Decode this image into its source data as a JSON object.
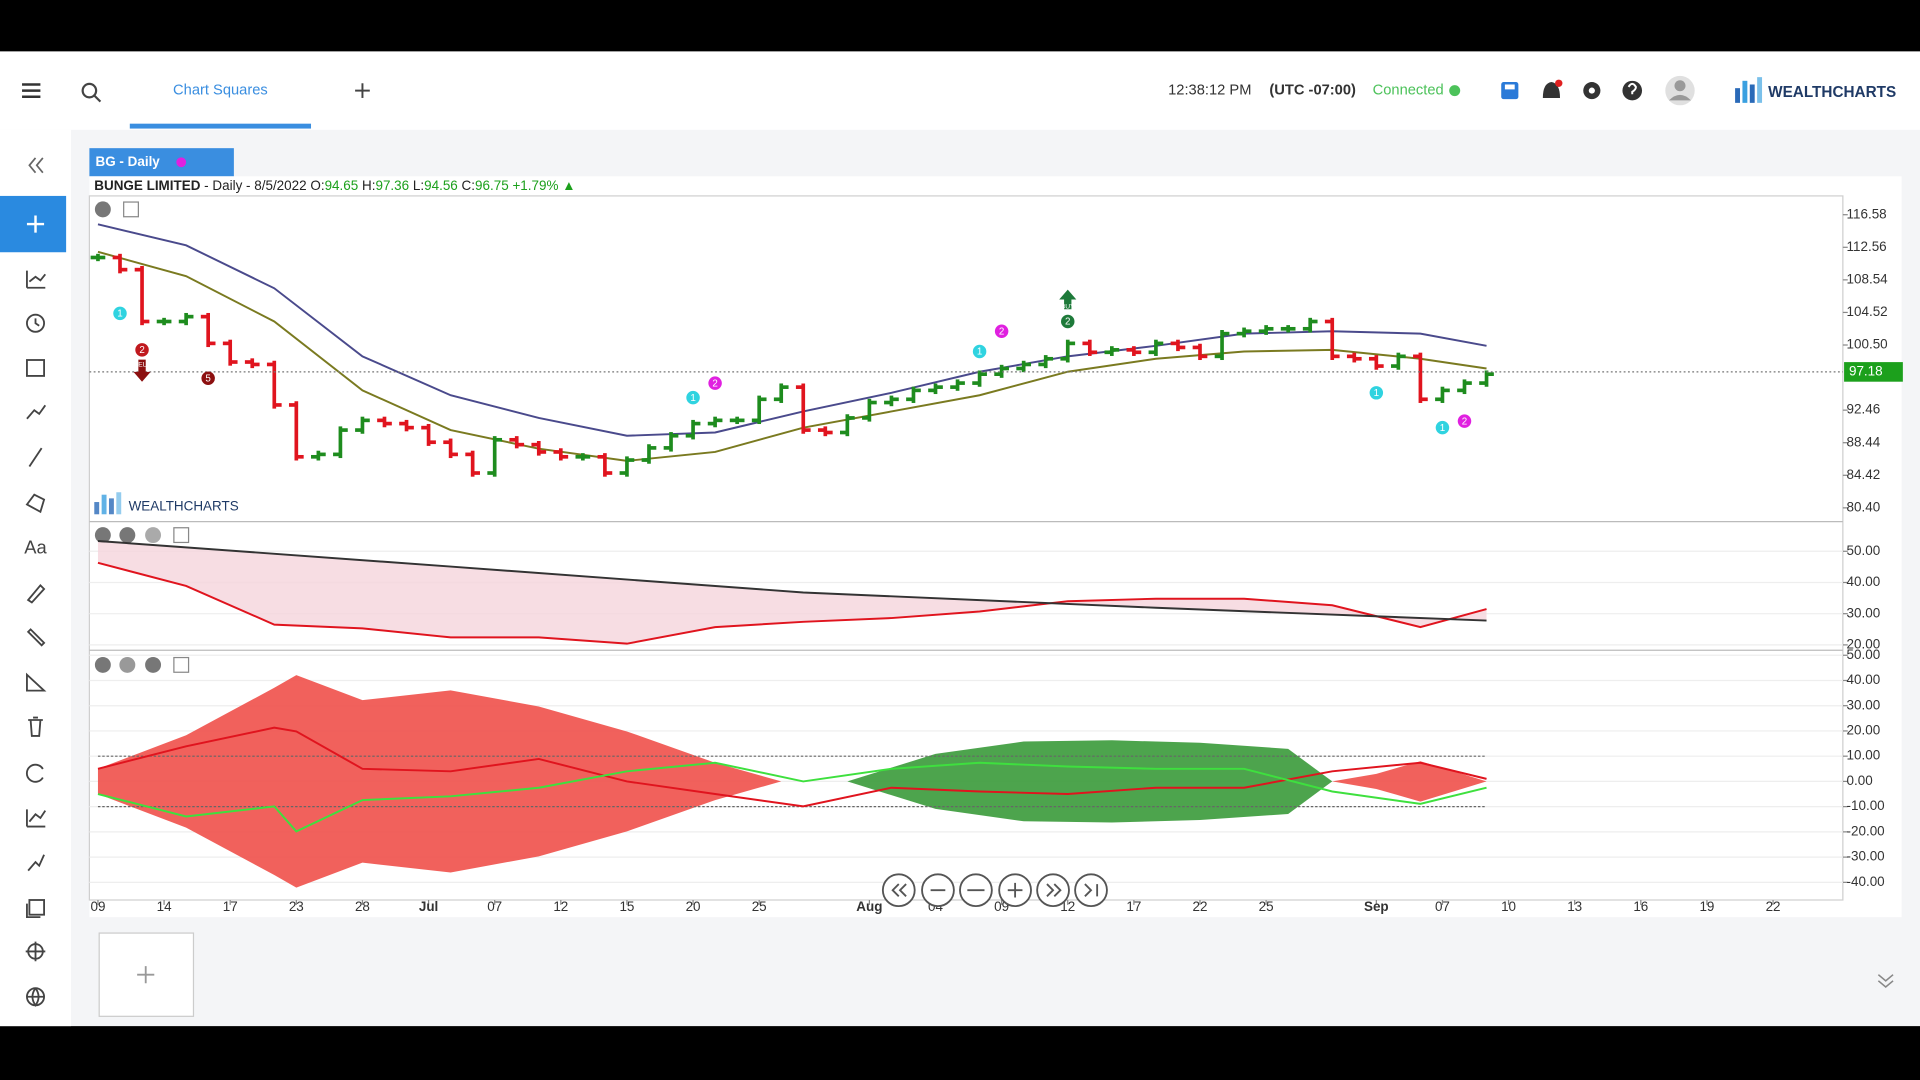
{
  "topbar": {
    "tab": "Chart Squares",
    "time": "12:38:12 PM",
    "timezone": "(UTC -07:00)",
    "status": "Connected",
    "brand": "WEALTHCHARTS"
  },
  "sidebar": {
    "text_tool": "Aa"
  },
  "chart_tab": "BG - Daily",
  "legend": {
    "name": "BUNGE LIMITED",
    "desc": "- Daily - 8/5/2022",
    "o_label": "O:",
    "open": 94.65,
    "h_label": "H:",
    "high": 97.36,
    "l_label": "L:",
    "low": 94.56,
    "c_label": "C:",
    "close": 96.75,
    "change": "+1.79%"
  },
  "watermark": "WEALTHCHARTS",
  "chart_data": [
    {
      "type": "ohlc",
      "categories": [
        "09",
        null,
        null,
        "14",
        null,
        null,
        "17",
        null,
        null,
        "23",
        null,
        null,
        "28",
        null,
        null,
        "Jul",
        null,
        null,
        "07",
        null,
        null,
        "12",
        null,
        null,
        "15",
        null,
        null,
        "20",
        null,
        null,
        "25",
        null,
        null,
        null,
        null,
        "Aug",
        null,
        null,
        "04",
        null,
        null,
        "09",
        null,
        null,
        "12",
        null,
        null,
        "17",
        null,
        null,
        "22",
        null,
        null,
        "25",
        null,
        null,
        null,
        null,
        "Sep",
        null,
        null,
        "07",
        null,
        null,
        "10",
        null,
        null,
        "13",
        null,
        null,
        "16",
        null,
        null,
        "19",
        null,
        null,
        "22"
      ],
      "series": [
        {
          "name": "BG",
          "values": [
            111.3,
            109.8,
            103.4,
            103.4,
            104.0,
            100.7,
            98.4,
            98.1,
            93.1,
            86.7,
            87.0,
            90.0,
            91.2,
            90.8,
            90.3,
            88.5,
            87.0,
            84.7,
            88.8,
            88.2,
            87.3,
            86.7,
            86.7,
            84.7,
            86.3,
            87.8,
            89.3,
            90.8,
            91.2,
            91.2,
            93.8,
            95.3,
            90.0,
            89.7,
            91.5,
            93.4,
            93.8,
            94.9,
            95.3,
            95.8,
            96.9,
            97.6,
            98.1,
            98.8,
            100.7,
            99.6,
            99.9,
            99.6,
            100.7,
            100.2,
            99.1,
            101.9,
            102.2,
            102.5,
            102.5,
            103.4,
            99.1,
            98.8,
            97.9,
            99.1,
            93.8,
            94.9,
            95.8,
            96.9,
            null,
            null,
            null,
            null,
            null,
            null,
            null,
            null,
            null,
            null,
            null,
            null,
            null
          ]
        },
        {
          "color": "#4a4a8c",
          "x": [
            0,
            4,
            8,
            12,
            16,
            20,
            24,
            28,
            32,
            36,
            40,
            44,
            48,
            52,
            56,
            60,
            63
          ],
          "values": [
            115.4,
            112.8,
            107.5,
            99.1,
            94.3,
            91.5,
            89.3,
            89.7,
            92.3,
            94.6,
            97.2,
            99.1,
            100.4,
            101.9,
            102.2,
            101.9,
            100.4
          ]
        },
        {
          "color": "#7a7a20",
          "x": [
            0,
            4,
            8,
            12,
            16,
            20,
            24,
            28,
            32,
            36,
            40,
            44,
            48,
            52,
            56,
            60,
            63
          ],
          "values": [
            112.0,
            109.0,
            103.4,
            94.9,
            90.0,
            87.7,
            86.2,
            87.3,
            90.3,
            92.3,
            94.3,
            97.2,
            98.8,
            99.7,
            99.9,
            98.8,
            97.6
          ]
        }
      ],
      "up_color": "#1e8c1e",
      "down_color": "#e0141e",
      "last_price": 97.18,
      "signals": [
        {
          "label": "1",
          "index": 1,
          "price": 104.4,
          "color": "#2fd3e0"
        },
        {
          "label": "2",
          "index": 2,
          "price": 99.9,
          "color": "#c0191e",
          "tag": "SELL"
        },
        {
          "label": "5",
          "index": 5,
          "price": 96.4,
          "color": "#8c1010"
        },
        {
          "label": "1",
          "index": 27,
          "price": 94.0,
          "color": "#2fd3e0"
        },
        {
          "label": "2",
          "index": 28,
          "price": 95.8,
          "color": "#e020e0"
        },
        {
          "label": "1",
          "index": 40,
          "price": 99.7,
          "color": "#2fd3e0"
        },
        {
          "label": "2",
          "index": 41,
          "price": 102.2,
          "color": "#e020e0"
        },
        {
          "label": "2",
          "index": 44,
          "price": 103.4,
          "color": "#1e7a3a",
          "tag": "BUY"
        },
        {
          "label": "1",
          "index": 58,
          "price": 94.6,
          "color": "#2fd3e0"
        },
        {
          "label": "1",
          "index": 61,
          "price": 90.3,
          "color": "#2fd3e0"
        },
        {
          "label": "2",
          "index": 62,
          "price": 91.1,
          "color": "#e020e0"
        }
      ],
      "ylim": [
        78.7,
        118.9
      ],
      "yticks": [
        {
          "value": 80.4,
          "label": "80.40"
        },
        84.42,
        88.44,
        92.46,
        {
          "value": 100.5,
          "label": "100.50"
        },
        104.52,
        108.54,
        112.56,
        116.58
      ]
    },
    {
      "type": "line",
      "series": [
        {
          "color": "#e0141e",
          "x": [
            0,
            4,
            8,
            12,
            16,
            20,
            24,
            28,
            32,
            36,
            40,
            44,
            48,
            52,
            56,
            60,
            63
          ],
          "values": [
            46.3,
            38.9,
            26.5,
            25.3,
            22.4,
            22.4,
            20.4,
            25.7,
            27.4,
            28.6,
            30.7,
            34.0,
            34.8,
            34.8,
            32.7,
            25.7,
            31.5
          ]
        },
        {
          "color": "#333333",
          "x": [
            0,
            16,
            32,
            48,
            63
          ],
          "values": [
            53.3,
            45.1,
            36.8,
            31.9,
            27.8
          ]
        }
      ],
      "fill": "#f5d5dc",
      "ylim": [
        18.3,
        59.5
      ],
      "yticks": [
        {
          "value": 20,
          "label": "20.00"
        },
        {
          "value": 30,
          "label": "30.00"
        },
        {
          "value": 40,
          "label": "40.00"
        },
        {
          "value": 50,
          "label": "50.00"
        }
      ]
    },
    {
      "type": "band",
      "bands": [
        {
          "color": "#f0504a",
          "x": [
            0,
            4,
            8,
            9,
            12,
            16,
            20,
            24,
            28,
            31
          ],
          "values": [
            5,
            18.3,
            37.1,
            42.1,
            32.2,
            36.1,
            29.7,
            19.8,
            7.4,
            0
          ]
        },
        {
          "color": "#3a9a3a",
          "x": [
            34,
            38,
            42,
            46,
            50,
            54,
            56
          ],
          "values": [
            0,
            10.9,
            15.8,
            16.3,
            15.3,
            12.9,
            0
          ]
        },
        {
          "color": "#f0504a",
          "x": [
            56,
            58,
            60,
            63
          ],
          "values": [
            0,
            3,
            8,
            0
          ]
        }
      ],
      "series": [
        {
          "color": "#e0141e",
          "x": [
            0,
            4,
            8,
            9,
            12,
            16,
            20,
            24,
            28,
            32,
            36,
            40,
            44,
            48,
            52,
            56,
            60,
            63
          ],
          "values": [
            5.0,
            13.9,
            21.3,
            19.8,
            5.0,
            4.0,
            8.9,
            0,
            -5.0,
            -9.9,
            -2.5,
            -4.0,
            -5.0,
            -2.5,
            -2.5,
            4.0,
            7.4,
            1.0
          ]
        },
        {
          "color": "#3ee03e",
          "x": [
            0,
            4,
            8,
            9,
            12,
            16,
            20,
            24,
            28,
            32,
            36,
            40,
            44,
            48,
            52,
            56,
            60,
            63
          ],
          "values": [
            -5.0,
            -13.9,
            -9.9,
            -19.8,
            -7.4,
            -5.9,
            -2.5,
            4.0,
            7.4,
            0,
            5.0,
            7.4,
            5.9,
            5.0,
            5.0,
            -4.0,
            -8.9,
            -2.5
          ]
        }
      ],
      "ylim": [
        -47,
        52
      ],
      "yticks": [
        {
          "value": 50,
          "label": "50.00"
        },
        {
          "value": 40,
          "label": "40.00"
        },
        {
          "value": 30,
          "label": "30.00"
        },
        {
          "value": 20,
          "label": "20.00"
        },
        {
          "value": 10,
          "label": "10.00"
        },
        {
          "value": 0,
          "label": "0.00"
        },
        {
          "value": -10,
          "label": "-10.00"
        },
        {
          "value": -20,
          "label": "-20.00"
        },
        {
          "value": -30,
          "label": "-30.00"
        },
        {
          "value": -40,
          "label": "-40.00"
        }
      ]
    }
  ]
}
